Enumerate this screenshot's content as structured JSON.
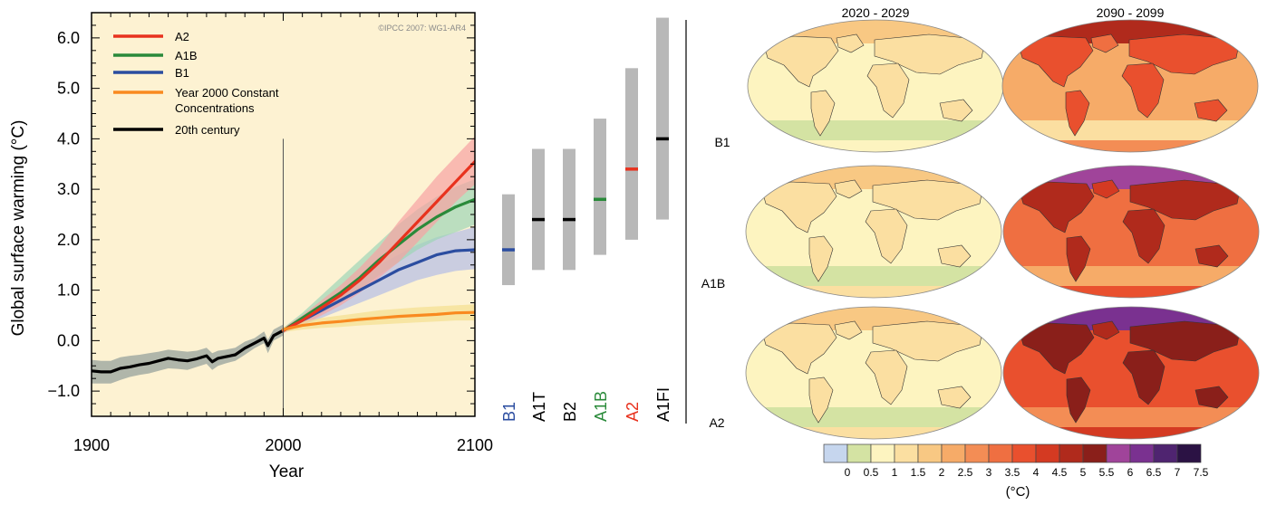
{
  "chart_data": [
    {
      "type": "line",
      "credit": "©IPCC  2007: WG1-AR4",
      "xlabel": "Year",
      "ylabel": "Global surface warming (°C)",
      "xlim": [
        1900,
        2100
      ],
      "ylim": [
        -1.5,
        6.5
      ],
      "xticks": [
        1900,
        2000,
        2100
      ],
      "yticks": [
        -1.0,
        0.0,
        1.0,
        2.0,
        3.0,
        4.0,
        5.0,
        6.0
      ],
      "ytick_labels": [
        "−1.0",
        "0.0",
        "1.0",
        "2.0",
        "3.0",
        "4.0",
        "5.0",
        "6.0"
      ],
      "vline_x": 2000,
      "background": "#fdf2d2",
      "legend_position": "top-left",
      "legend": [
        {
          "name": "A2",
          "color": "#e8321e"
        },
        {
          "name": "A1B",
          "color": "#2a8a3a"
        },
        {
          "name": "B1",
          "color": "#2b4da0"
        },
        {
          "name": "Year 2000 Constant",
          "name2": "Concentrations",
          "color": "#f98a20"
        },
        {
          "name": "20th century",
          "color": "#000000"
        }
      ],
      "series": [
        {
          "name": "20th century",
          "color": "#000000",
          "band_color": "#8f9d98",
          "x": [
            1900,
            1905,
            1910,
            1915,
            1920,
            1925,
            1930,
            1935,
            1940,
            1945,
            1950,
            1955,
            1960,
            1963,
            1966,
            1970,
            1975,
            1980,
            1985,
            1990,
            1992,
            1995,
            2000
          ],
          "y": [
            -0.6,
            -0.62,
            -0.62,
            -0.55,
            -0.52,
            -0.48,
            -0.45,
            -0.4,
            -0.35,
            -0.38,
            -0.4,
            -0.36,
            -0.3,
            -0.42,
            -0.35,
            -0.32,
            -0.28,
            -0.15,
            -0.05,
            0.05,
            -0.1,
            0.1,
            0.2
          ],
          "lo": [
            -0.85,
            -0.85,
            -0.85,
            -0.78,
            -0.72,
            -0.68,
            -0.65,
            -0.6,
            -0.55,
            -0.56,
            -0.58,
            -0.52,
            -0.46,
            -0.58,
            -0.5,
            -0.45,
            -0.4,
            -0.28,
            -0.15,
            -0.05,
            -0.25,
            0.0,
            0.1
          ],
          "hi": [
            -0.38,
            -0.4,
            -0.4,
            -0.33,
            -0.3,
            -0.28,
            -0.25,
            -0.22,
            -0.18,
            -0.2,
            -0.22,
            -0.2,
            -0.14,
            -0.25,
            -0.2,
            -0.18,
            -0.14,
            -0.02,
            0.05,
            0.18,
            0.02,
            0.22,
            0.32
          ]
        },
        {
          "name": "B1",
          "color": "#2b4da0",
          "band_color": "#b3bde6",
          "x": [
            2000,
            2010,
            2020,
            2030,
            2040,
            2050,
            2060,
            2070,
            2080,
            2090,
            2100
          ],
          "y": [
            0.2,
            0.4,
            0.6,
            0.8,
            1.0,
            1.2,
            1.4,
            1.55,
            1.7,
            1.78,
            1.8
          ],
          "lo": [
            0.15,
            0.3,
            0.45,
            0.6,
            0.75,
            0.9,
            1.05,
            1.2,
            1.3,
            1.38,
            1.42
          ],
          "hi": [
            0.25,
            0.5,
            0.75,
            1.0,
            1.25,
            1.5,
            1.7,
            1.9,
            2.05,
            2.15,
            2.25
          ]
        },
        {
          "name": "A1B",
          "color": "#2a8a3a",
          "band_color": "#9ed6b6",
          "x": [
            2000,
            2010,
            2020,
            2030,
            2040,
            2050,
            2060,
            2070,
            2080,
            2090,
            2100
          ],
          "y": [
            0.2,
            0.45,
            0.7,
            0.95,
            1.25,
            1.6,
            1.9,
            2.2,
            2.45,
            2.65,
            2.8
          ],
          "lo": [
            0.15,
            0.35,
            0.55,
            0.75,
            1.0,
            1.3,
            1.55,
            1.8,
            2.0,
            2.15,
            2.3
          ],
          "hi": [
            0.25,
            0.55,
            0.9,
            1.25,
            1.6,
            1.95,
            2.3,
            2.6,
            2.85,
            3.05,
            3.2
          ]
        },
        {
          "name": "A2",
          "color": "#e8321e",
          "band_color": "#f6a3a3",
          "x": [
            2000,
            2010,
            2020,
            2030,
            2040,
            2050,
            2060,
            2070,
            2080,
            2090,
            2100
          ],
          "y": [
            0.2,
            0.4,
            0.65,
            0.9,
            1.2,
            1.55,
            1.95,
            2.35,
            2.75,
            3.15,
            3.55
          ],
          "lo": [
            0.15,
            0.3,
            0.5,
            0.7,
            0.95,
            1.25,
            1.55,
            1.95,
            2.35,
            2.75,
            3.1
          ],
          "hi": [
            0.25,
            0.5,
            0.8,
            1.1,
            1.45,
            1.85,
            2.35,
            2.8,
            3.25,
            3.65,
            4.05
          ]
        },
        {
          "name": "Year 2000 Constant Concentrations",
          "color": "#f98a20",
          "band_color": "#f4df8e",
          "x": [
            2000,
            2010,
            2020,
            2030,
            2040,
            2050,
            2060,
            2070,
            2080,
            2090,
            2100
          ],
          "y": [
            0.22,
            0.3,
            0.35,
            0.38,
            0.42,
            0.45,
            0.48,
            0.5,
            0.52,
            0.55,
            0.56
          ],
          "lo": [
            0.17,
            0.22,
            0.25,
            0.27,
            0.3,
            0.32,
            0.34,
            0.36,
            0.38,
            0.4,
            0.4
          ],
          "hi": [
            0.27,
            0.38,
            0.45,
            0.5,
            0.55,
            0.6,
            0.63,
            0.66,
            0.68,
            0.7,
            0.72
          ]
        }
      ]
    },
    {
      "type": "bar",
      "subtype": "range",
      "categories": [
        "B1",
        "A1T",
        "B2",
        "A1B",
        "A2",
        "A1FI"
      ],
      "label_colors": [
        "#2b4da0",
        "#000000",
        "#000000",
        "#2a8a3a",
        "#e8321e",
        "#000000"
      ],
      "low": [
        1.1,
        1.4,
        1.4,
        1.7,
        2.0,
        2.4
      ],
      "high": [
        2.9,
        3.8,
        3.8,
        4.4,
        5.4,
        6.4
      ],
      "best": [
        1.8,
        2.4,
        2.4,
        2.8,
        3.4,
        4.0
      ],
      "bar_color": "#b8b8b8"
    },
    {
      "type": "heatmap",
      "columns": [
        "2020 - 2029",
        "2090 - 2099"
      ],
      "rows": [
        "B1",
        "A1B",
        "A2"
      ],
      "mean_warming": [
        [
          0.7,
          2.3
        ],
        [
          0.9,
          3.4
        ],
        [
          0.9,
          3.9
        ]
      ],
      "colorbar": {
        "unit": "(°C)",
        "tick_labels": [
          "0",
          "0.5",
          "1",
          "1.5",
          "2",
          "2.5",
          "3",
          "3.5",
          "4",
          "4.5",
          "5",
          "5.5",
          "6",
          "6.5",
          "7",
          "7.5"
        ],
        "colors": [
          "#c6d6ee",
          "#d4e3a3",
          "#fdf4c0",
          "#fbdfa1",
          "#f8c883",
          "#f6ab68",
          "#f38d55",
          "#ef6f41",
          "#e9502e",
          "#d43a22",
          "#b02a1c",
          "#8a1f1a",
          "#a0449a",
          "#7a3190",
          "#4f2470",
          "#2b1244"
        ]
      }
    }
  ]
}
